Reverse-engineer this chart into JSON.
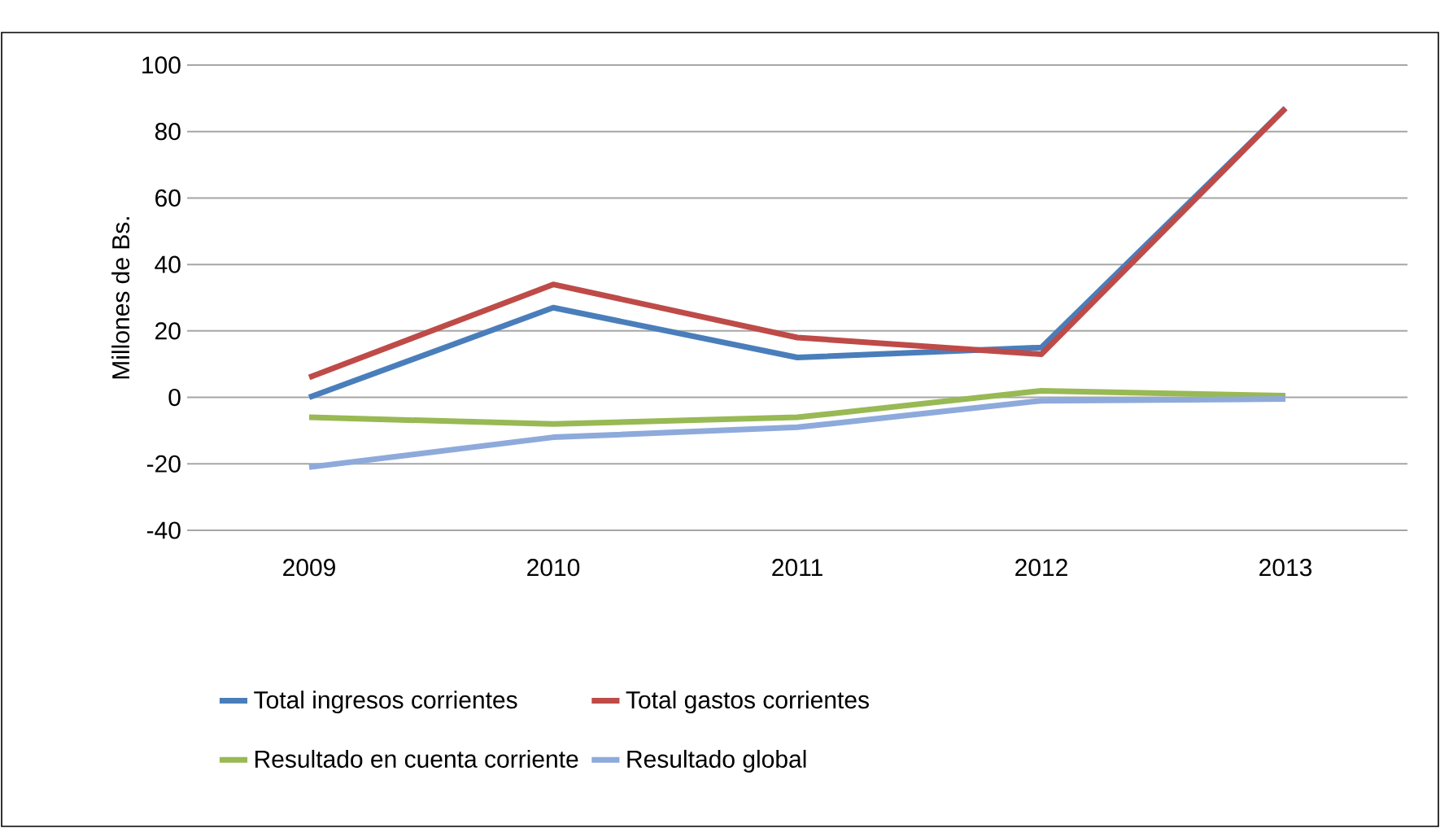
{
  "chart_data": {
    "type": "line",
    "ylabel": "Millones de Bs.",
    "categories": [
      "2009",
      "2010",
      "2011",
      "2012",
      "2013"
    ],
    "series": [
      {
        "name": "Total ingresos corrientes",
        "color": "#4a7ebb",
        "values": [
          0,
          27,
          12,
          15,
          87
        ]
      },
      {
        "name": "Total gastos corrientes",
        "color": "#be4b48",
        "values": [
          6,
          34,
          18,
          13,
          87
        ]
      },
      {
        "name": "Resultado en cuenta corriente",
        "color": "#98b954",
        "values": [
          -6,
          -8,
          -6,
          2,
          0.5
        ]
      },
      {
        "name": "Resultado global",
        "color": "#8eaadb",
        "values": [
          -21,
          -12,
          -9,
          -1,
          -0.5
        ]
      }
    ],
    "ylim": [
      -40,
      100
    ],
    "yticks": [
      -40,
      -20,
      0,
      20,
      40,
      60,
      80,
      100
    ],
    "grid": "y",
    "legend": "bottom",
    "marker": "none",
    "line_style": "solid"
  }
}
